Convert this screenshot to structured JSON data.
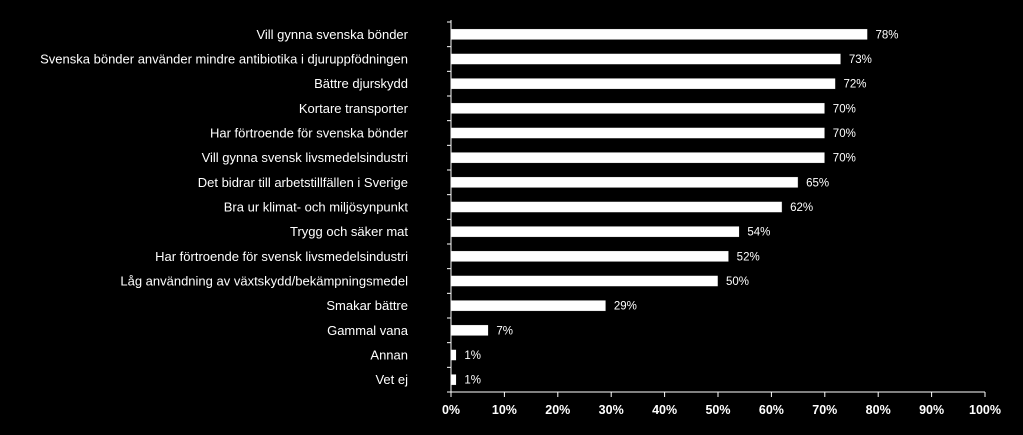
{
  "chart_data": {
    "type": "bar",
    "orientation": "horizontal",
    "categories": [
      "Vill gynna svenska bönder",
      "Svenska bönder använder mindre antibiotika i djuruppfödningen",
      "Bättre djurskydd",
      "Kortare transporter",
      "Har förtroende för svenska bönder",
      "Vill gynna svensk livsmedelsindustri",
      "Det bidrar till arbetstillfällen i Sverige",
      "Bra ur klimat- och miljösynpunkt",
      "Trygg och säker mat",
      "Har förtroende för svensk livsmedelsindustri",
      "Låg användning av växtskydd/bekämpningsmedel",
      "Smakar bättre",
      "Gammal vana",
      "Annan",
      "Vet ej"
    ],
    "values": [
      78,
      73,
      72,
      70,
      70,
      70,
      65,
      62,
      54,
      52,
      50,
      29,
      7,
      1,
      1
    ],
    "value_labels": [
      "78%",
      "73%",
      "72%",
      "70%",
      "70%",
      "70%",
      "65%",
      "62%",
      "54%",
      "52%",
      "50%",
      "29%",
      "7%",
      "1%",
      "1%"
    ],
    "xlim": [
      0,
      100
    ],
    "x_ticks": [
      0,
      10,
      20,
      30,
      40,
      50,
      60,
      70,
      80,
      90,
      100
    ],
    "x_tick_labels": [
      "0%",
      "10%",
      "20%",
      "30%",
      "40%",
      "50%",
      "60%",
      "70%",
      "80%",
      "90%",
      "100%"
    ],
    "title": "",
    "xlabel": "",
    "ylabel": "",
    "grid": false,
    "legend": "none",
    "colors": {
      "background": "#000000",
      "bar_fill": "#ffffff",
      "bar_stroke": "#000000",
      "axis": "#ffffff",
      "text": "#ffffff"
    }
  }
}
